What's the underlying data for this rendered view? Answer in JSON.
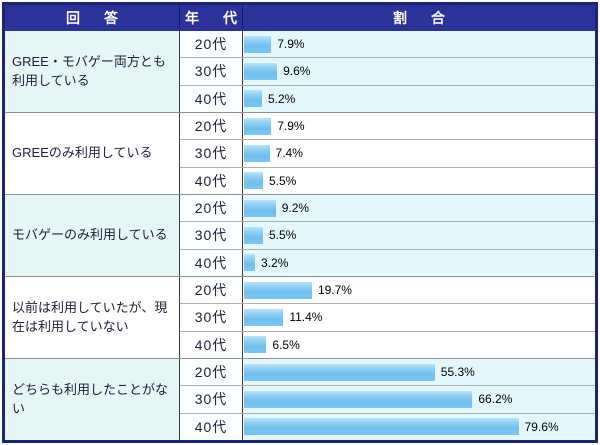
{
  "colors": {
    "header_bg": "#2b339b",
    "header_text": "#ffffff",
    "outer_border": "#1c2473",
    "bar_light": "#bce3f9",
    "bar_main": "#6fbfee",
    "tint_row_bg": "#e4f8fb",
    "value_text": "#000000"
  },
  "chart_data": {
    "type": "bar",
    "orientation": "horizontal",
    "value_unit": "%",
    "xlim": [
      0,
      100
    ],
    "grid": false,
    "legend": false,
    "columns": [
      "回　答",
      "年　代",
      "割　合"
    ],
    "groups": [
      {
        "label": "GREE・モバゲー両方とも利用している",
        "rows": [
          {
            "age": "20代",
            "value": 7.9,
            "pct": "7.9%"
          },
          {
            "age": "30代",
            "value": 9.6,
            "pct": "9.6%"
          },
          {
            "age": "40代",
            "value": 5.2,
            "pct": "5.2%"
          }
        ]
      },
      {
        "label": "GREEのみ利用している",
        "rows": [
          {
            "age": "20代",
            "value": 7.9,
            "pct": "7.9%"
          },
          {
            "age": "30代",
            "value": 7.4,
            "pct": "7.4%"
          },
          {
            "age": "40代",
            "value": 5.5,
            "pct": "5.5%"
          }
        ]
      },
      {
        "label": "モバゲーのみ利用している",
        "rows": [
          {
            "age": "20代",
            "value": 9.2,
            "pct": "9.2%"
          },
          {
            "age": "30代",
            "value": 5.5,
            "pct": "5.5%"
          },
          {
            "age": "40代",
            "value": 3.2,
            "pct": "3.2%"
          }
        ]
      },
      {
        "label": "以前は利用していたが、現在は利用していない",
        "rows": [
          {
            "age": "20代",
            "value": 19.7,
            "pct": "19.7%"
          },
          {
            "age": "30代",
            "value": 11.4,
            "pct": "11.4%"
          },
          {
            "age": "40代",
            "value": 6.5,
            "pct": "6.5%"
          }
        ]
      },
      {
        "label": "どちらも利用したことがない",
        "rows": [
          {
            "age": "20代",
            "value": 55.3,
            "pct": "55.3%"
          },
          {
            "age": "30代",
            "value": 66.2,
            "pct": "66.2%"
          },
          {
            "age": "40代",
            "value": 79.6,
            "pct": "79.6%"
          }
        ]
      }
    ]
  }
}
